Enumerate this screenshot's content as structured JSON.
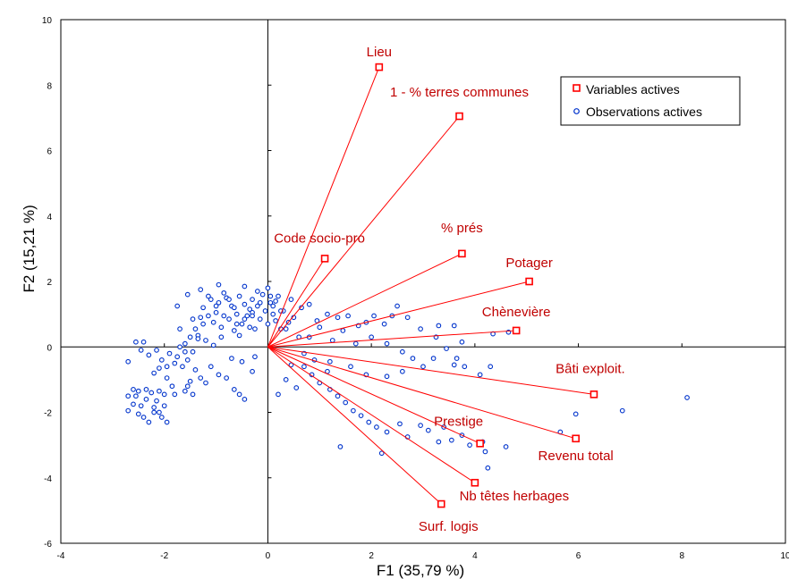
{
  "chart_data": {
    "type": "scatter",
    "xlabel": "F1 (35,79 %)",
    "ylabel": "F2 (15,21 %)",
    "xlim": [
      -4,
      10
    ],
    "ylim": [
      -6,
      10
    ],
    "xticks": [
      "-4",
      "-2",
      "0",
      "2",
      "4",
      "6",
      "8",
      "10"
    ],
    "yticks": [
      "-6",
      "-4",
      "-2",
      "0",
      "2",
      "4",
      "6",
      "8",
      "10"
    ],
    "grid": false,
    "legend": {
      "position": "top-right",
      "entries": [
        {
          "name": "Variables actives",
          "marker": "square",
          "color": "#ff0000"
        },
        {
          "name": "Observations actives",
          "marker": "circle",
          "color": "#0000c0"
        }
      ]
    },
    "colors": {
      "variables": "#ff0000",
      "variable_labels": "#c00000",
      "observations": "#0033cc"
    },
    "variables": [
      {
        "name": "Lieu",
        "x": 2.15,
        "y": 8.55
      },
      {
        "name": "1 - % terres communes",
        "x": 3.7,
        "y": 7.05
      },
      {
        "name": "Code socio-pro",
        "x": 1.1,
        "y": 2.7
      },
      {
        "name": "% prés",
        "x": 3.75,
        "y": 2.85
      },
      {
        "name": "Potager",
        "x": 5.05,
        "y": 2.0
      },
      {
        "name": "Chènevière",
        "x": 4.8,
        "y": 0.5
      },
      {
        "name": "Bâti exploit.",
        "x": 6.3,
        "y": -1.45
      },
      {
        "name": "Prestige",
        "x": 4.1,
        "y": -2.95
      },
      {
        "name": "Revenu total",
        "x": 5.95,
        "y": -2.8
      },
      {
        "name": "Nb têtes herbages",
        "x": 4.0,
        "y": -4.15
      },
      {
        "name": "Surf. logis",
        "x": 3.35,
        "y": -4.8
      }
    ],
    "observations": [
      [
        -2.7,
        -0.45
      ],
      [
        -2.55,
        0.15
      ],
      [
        -2.4,
        0.15
      ],
      [
        -2.45,
        -0.1
      ],
      [
        -2.3,
        -0.25
      ],
      [
        -2.15,
        -0.1
      ],
      [
        -2.05,
        -0.4
      ],
      [
        -1.95,
        -0.6
      ],
      [
        -1.9,
        -0.2
      ],
      [
        -2.1,
        -0.65
      ],
      [
        -2.2,
        -0.8
      ],
      [
        -1.8,
        -0.5
      ],
      [
        -1.75,
        -0.3
      ],
      [
        -1.7,
        0.0
      ],
      [
        -1.6,
        0.1
      ],
      [
        -1.65,
        -0.6
      ],
      [
        -1.55,
        -0.4
      ],
      [
        -1.5,
        0.3
      ],
      [
        -1.45,
        -0.15
      ],
      [
        -1.4,
        0.55
      ],
      [
        -1.35,
        0.35
      ],
      [
        -1.3,
        0.9
      ],
      [
        -1.25,
        1.2
      ],
      [
        -1.2,
        0.2
      ],
      [
        -1.15,
        0.95
      ],
      [
        -1.1,
        1.45
      ],
      [
        -1.05,
        0.75
      ],
      [
        -1.0,
        1.05
      ],
      [
        -0.95,
        1.35
      ],
      [
        -0.9,
        0.6
      ],
      [
        -0.85,
        1.65
      ],
      [
        -0.8,
        1.5
      ],
      [
        -0.75,
        0.85
      ],
      [
        -0.7,
        1.25
      ],
      [
        -0.65,
        0.5
      ],
      [
        -0.6,
        1.0
      ],
      [
        -0.55,
        1.55
      ],
      [
        -0.5,
        0.7
      ],
      [
        -0.45,
        1.3
      ],
      [
        -0.4,
        0.95
      ],
      [
        -0.35,
        1.15
      ],
      [
        -0.3,
        1.45
      ],
      [
        -0.25,
        0.55
      ],
      [
        -0.2,
        1.25
      ],
      [
        -0.15,
        0.85
      ],
      [
        -0.1,
        1.6
      ],
      [
        -0.05,
        1.1
      ],
      [
        0.0,
        0.7
      ],
      [
        0.05,
        1.35
      ],
      [
        0.1,
        1.0
      ],
      [
        0.15,
        0.8
      ],
      [
        0.2,
        1.55
      ],
      [
        0.3,
        1.1
      ],
      [
        0.35,
        0.55
      ],
      [
        -0.9,
        0.3
      ],
      [
        -1.05,
        0.05
      ],
      [
        -1.6,
        -0.15
      ],
      [
        -1.95,
        -0.95
      ],
      [
        -1.85,
        -1.2
      ],
      [
        -1.4,
        -0.7
      ],
      [
        -1.3,
        -0.95
      ],
      [
        -1.1,
        -0.6
      ],
      [
        -1.2,
        -1.1
      ],
      [
        -0.95,
        -0.85
      ],
      [
        -1.5,
        -1.05
      ],
      [
        -1.55,
        -1.2
      ],
      [
        -1.6,
        -1.35
      ],
      [
        -1.45,
        -1.45
      ],
      [
        -1.8,
        -1.45
      ],
      [
        -2.0,
        -1.8
      ],
      [
        -2.15,
        -1.65
      ],
      [
        -2.25,
        -1.4
      ],
      [
        -2.35,
        -1.6
      ],
      [
        -2.45,
        -1.8
      ],
      [
        -2.55,
        -1.5
      ],
      [
        -2.6,
        -1.3
      ],
      [
        -2.7,
        -1.5
      ],
      [
        -2.7,
        -1.95
      ],
      [
        -2.5,
        -2.05
      ],
      [
        -2.4,
        -2.15
      ],
      [
        -2.2,
        -2.0
      ],
      [
        -2.05,
        -2.15
      ],
      [
        -1.95,
        -2.3
      ],
      [
        -2.3,
        -2.3
      ],
      [
        -2.1,
        -1.35
      ],
      [
        -2.6,
        -1.75
      ],
      [
        -2.5,
        -1.35
      ],
      [
        -2.35,
        -1.3
      ],
      [
        -2.2,
        -1.85
      ],
      [
        -2.1,
        -2.0
      ],
      [
        -0.8,
        -0.95
      ],
      [
        -0.65,
        -1.3
      ],
      [
        -0.55,
        -1.45
      ],
      [
        -0.45,
        -1.6
      ],
      [
        -0.7,
        -0.35
      ],
      [
        -0.5,
        -0.45
      ],
      [
        -0.25,
        -0.3
      ],
      [
        -0.3,
        -0.75
      ],
      [
        0.2,
        -1.45
      ],
      [
        0.35,
        -1.0
      ],
      [
        0.45,
        -0.55
      ],
      [
        0.55,
        -1.25
      ],
      [
        0.7,
        -0.6
      ],
      [
        0.85,
        -0.85
      ],
      [
        1.0,
        -1.1
      ],
      [
        1.15,
        -0.75
      ],
      [
        1.2,
        -1.3
      ],
      [
        1.35,
        -1.5
      ],
      [
        1.5,
        -1.7
      ],
      [
        1.65,
        -1.95
      ],
      [
        1.8,
        -2.1
      ],
      [
        1.95,
        -2.3
      ],
      [
        2.1,
        -2.45
      ],
      [
        2.3,
        -2.6
      ],
      [
        2.55,
        -2.35
      ],
      [
        2.7,
        -2.75
      ],
      [
        2.95,
        -2.4
      ],
      [
        3.1,
        -2.55
      ],
      [
        3.4,
        -2.45
      ],
      [
        3.55,
        -2.85
      ],
      [
        3.75,
        -2.7
      ],
      [
        3.9,
        -3.0
      ],
      [
        4.2,
        -3.2
      ],
      [
        4.25,
        -3.7
      ],
      [
        4.6,
        -3.05
      ],
      [
        1.4,
        -3.05
      ],
      [
        2.2,
        -3.25
      ],
      [
        3.3,
        -2.9
      ],
      [
        4.15,
        -2.9
      ],
      [
        5.65,
        -2.6
      ],
      [
        5.95,
        -2.05
      ],
      [
        6.85,
        -1.95
      ],
      [
        8.1,
        -1.55
      ],
      [
        3.6,
        -0.55
      ],
      [
        3.8,
        -0.6
      ],
      [
        4.1,
        -0.85
      ],
      [
        4.3,
        -0.6
      ],
      [
        4.65,
        0.45
      ],
      [
        4.35,
        0.4
      ],
      [
        3.6,
        0.65
      ],
      [
        3.75,
        0.15
      ],
      [
        3.3,
        0.65
      ],
      [
        3.25,
        0.3
      ],
      [
        2.95,
        0.55
      ],
      [
        2.7,
        0.9
      ],
      [
        2.5,
        1.25
      ],
      [
        2.4,
        0.95
      ],
      [
        2.25,
        0.7
      ],
      [
        2.05,
        0.95
      ],
      [
        1.9,
        0.75
      ],
      [
        1.75,
        0.65
      ],
      [
        1.55,
        0.95
      ],
      [
        1.35,
        0.9
      ],
      [
        1.15,
        1.0
      ],
      [
        0.95,
        0.8
      ],
      [
        0.8,
        1.3
      ],
      [
        0.65,
        1.2
      ],
      [
        0.5,
        0.9
      ],
      [
        0.4,
        0.75
      ],
      [
        0.25,
        0.55
      ],
      [
        0.6,
        0.3
      ],
      [
        0.8,
        0.3
      ],
      [
        1.0,
        0.6
      ],
      [
        1.25,
        0.2
      ],
      [
        1.45,
        0.5
      ],
      [
        1.7,
        0.1
      ],
      [
        2.0,
        0.3
      ],
      [
        2.3,
        0.1
      ],
      [
        2.6,
        -0.15
      ],
      [
        2.8,
        -0.35
      ],
      [
        3.0,
        -0.6
      ],
      [
        3.2,
        -0.35
      ],
      [
        3.45,
        -0.05
      ],
      [
        3.65,
        -0.35
      ],
      [
        1.2,
        -0.45
      ],
      [
        0.9,
        -0.4
      ],
      [
        0.7,
        -0.2
      ],
      [
        1.6,
        -0.6
      ],
      [
        1.9,
        -0.85
      ],
      [
        2.3,
        -0.9
      ],
      [
        2.6,
        -0.75
      ],
      [
        -0.3,
        1.05
      ],
      [
        0.1,
        1.25
      ],
      [
        0.25,
        1.1
      ],
      [
        -0.15,
        1.35
      ],
      [
        0.05,
        1.55
      ],
      [
        -0.65,
        1.2
      ],
      [
        -0.75,
        1.45
      ],
      [
        -1.0,
        1.25
      ],
      [
        -1.15,
        1.55
      ],
      [
        -0.85,
        0.95
      ],
      [
        -0.6,
        0.7
      ],
      [
        -0.45,
        0.85
      ],
      [
        -0.35,
        0.6
      ],
      [
        0.45,
        1.45
      ],
      [
        -1.25,
        0.7
      ],
      [
        -1.45,
        0.85
      ],
      [
        -1.7,
        0.55
      ],
      [
        -1.75,
        1.25
      ],
      [
        -1.55,
        1.6
      ],
      [
        -1.3,
        1.75
      ],
      [
        -0.95,
        1.9
      ],
      [
        -0.45,
        1.85
      ],
      [
        0.0,
        1.8
      ],
      [
        -0.2,
        1.7
      ],
      [
        -1.35,
        0.25
      ],
      [
        -2.0,
        -1.45
      ],
      [
        -0.55,
        0.35
      ],
      [
        -0.3,
        0.95
      ],
      [
        0.15,
        1.4
      ]
    ]
  }
}
